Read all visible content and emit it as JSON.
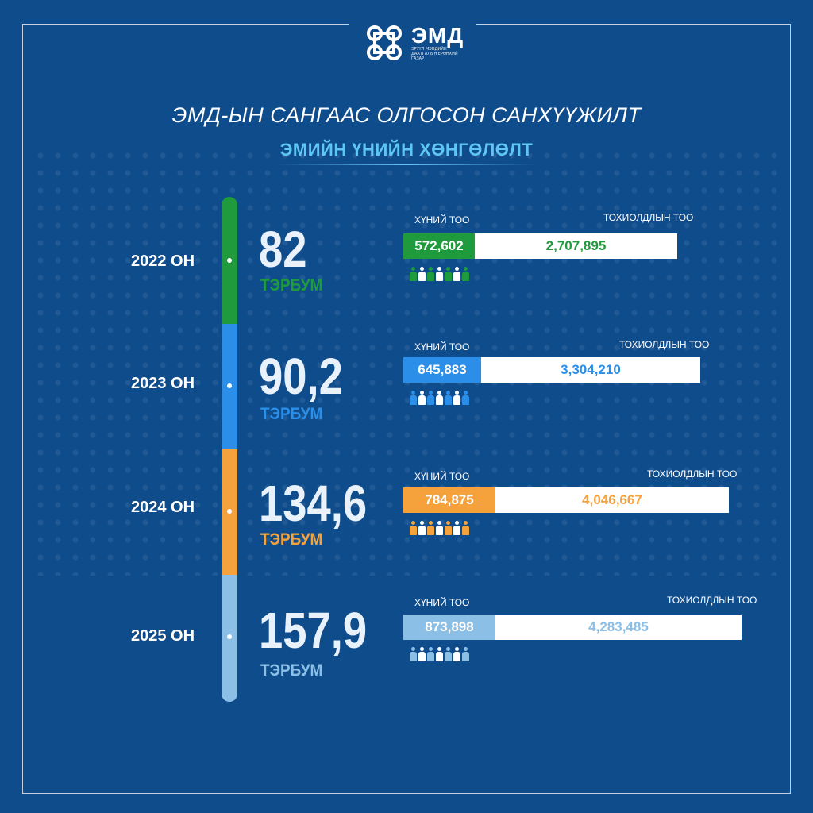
{
  "logo": {
    "name": "ЭМД",
    "subtitle": "ЭРҮҮЛ МЭНДИЙН ДААТГАЛЫН ЕРӨНХИЙ ГАЗАР"
  },
  "title": "ЭМД-ЫН САНГААС ОЛГОСОН САНХҮҮЖИЛТ",
  "subtitle": "ЭМИЙН ҮНИЙН ХӨНГӨЛӨЛТ",
  "colors": {
    "background": "#0f4c8c",
    "green": "#1f9a3c",
    "blue": "#2b8ee8",
    "orange": "#f5a23c",
    "lightblue": "#8bbfe6"
  },
  "people_label": "ХҮНИЙ ТОО",
  "cases_label": "ТОХИОЛДЛЫН ТОО",
  "years": [
    {
      "year": "2022 ОН",
      "amount": "82",
      "unit": "ТЭРБУМ",
      "people": "572,602",
      "cases": "2,707,895",
      "color": "#1f9a3c"
    },
    {
      "year": "2023 ОН",
      "amount": "90,2",
      "unit": "ТЭРБУМ",
      "people": "645,883",
      "cases": "3,304,210",
      "color": "#2b8ee8"
    },
    {
      "year": "2024 ОН",
      "amount": "134,6",
      "unit": "ТЭРБУМ",
      "people": "784,875",
      "cases": "4,046,667",
      "color": "#f5a23c"
    },
    {
      "year": "2025 ОН",
      "amount": "157,9",
      "unit": "ТЭРБУМ",
      "people": "873,898",
      "cases": "4,283,485",
      "color": "#8bbfe6"
    }
  ]
}
